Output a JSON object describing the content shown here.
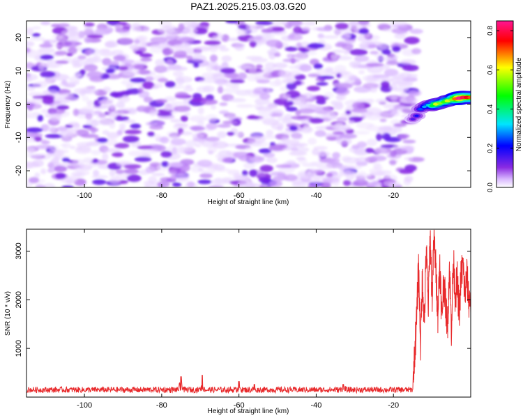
{
  "title": "PAZ1.2025.215.03.03.G20",
  "chart_data": [
    {
      "type": "heatmap",
      "xlabel": "Height of straight line (km)",
      "ylabel": "Frequency (Hz)",
      "xlim": [
        -115,
        0
      ],
      "ylim": [
        -25,
        25
      ],
      "x_ticks": [
        -100,
        -80,
        -60,
        -40,
        -20
      ],
      "y_ticks": [
        -20,
        -10,
        0,
        10,
        20
      ],
      "x_tick_labels": [
        "-100",
        "-80",
        "-60",
        "-40",
        "-20"
      ],
      "y_tick_labels": [
        "-20",
        "-10",
        "0",
        "10",
        "20"
      ],
      "colorbar": {
        "label": "Normalized spectral amplitude",
        "range": [
          0.0,
          0.85
        ],
        "ticks": [
          0.0,
          0.2,
          0.4,
          0.6,
          0.8
        ],
        "tick_labels": [
          "0.0",
          "0.2",
          "0.4",
          "0.6",
          "0.8"
        ],
        "colors": [
          "#ffffff",
          "#d9b8ff",
          "#8a2be2",
          "#0000ff",
          "#00e5ff",
          "#00ff00",
          "#ffff00",
          "#ff0000",
          "#ff1493"
        ]
      },
      "noise_region": {
        "x_range": [
          -115,
          -15
        ],
        "y_range": [
          -25,
          25
        ],
        "amplitude_range": [
          0.02,
          0.12
        ]
      },
      "signal_ridge": {
        "x": [
          -15,
          -14,
          -13,
          -12,
          -11,
          -10,
          -9,
          -8,
          -7,
          -6,
          -5,
          -4,
          -3,
          -2,
          -1,
          0
        ],
        "y": [
          -4.5,
          -3.5,
          -1.5,
          -0.8,
          -0.3,
          -0.5,
          0.0,
          0.3,
          0.6,
          1.0,
          1.3,
          1.6,
          1.8,
          2.0,
          2.0,
          2.0
        ],
        "amplitude": [
          0.15,
          0.2,
          0.25,
          0.3,
          0.35,
          0.45,
          0.6,
          0.55,
          0.5,
          0.6,
          0.55,
          0.7,
          0.85,
          0.8,
          0.75,
          0.7
        ]
      }
    },
    {
      "type": "line",
      "xlabel": "Height of straight line (km)",
      "ylabel": "SNR (10 * v/v)",
      "xlim": [
        -115,
        0
      ],
      "ylim": [
        0,
        3450
      ],
      "x_ticks": [
        -100,
        -80,
        -60,
        -40,
        -20
      ],
      "y_ticks": [
        1000,
        2000,
        3000
      ],
      "x_tick_labels": [
        "-100",
        "-80",
        "-60",
        "-40",
        "-20"
      ],
      "y_tick_labels": [
        "1000",
        "2000",
        "3000"
      ],
      "color": "#e8292b",
      "baseline": {
        "x_range": [
          -115,
          -15
        ],
        "mean": 150,
        "amplitude": 60
      },
      "spikes": [
        {
          "x": -75,
          "y": 420
        },
        {
          "x": -69.5,
          "y": 450
        },
        {
          "x": -60,
          "y": 320
        },
        {
          "x": -56,
          "y": 260
        },
        {
          "x": -33,
          "y": 260
        }
      ],
      "x": [
        -15,
        -14.5,
        -14,
        -13.5,
        -13,
        -12.5,
        -12,
        -11.5,
        -11,
        -10.5,
        -10,
        -9.5,
        -9,
        -8.5,
        -8,
        -7.5,
        -7,
        -6.5,
        -6,
        -5.5,
        -5,
        -4.5,
        -4,
        -3.5,
        -3,
        -2.5,
        -2,
        -1.5,
        -1,
        -0.5,
        0
      ],
      "y": [
        250,
        900,
        1600,
        2700,
        1100,
        2500,
        1500,
        3100,
        1800,
        3400,
        2000,
        3300,
        2600,
        1700,
        2800,
        1600,
        2400,
        1900,
        1500,
        2700,
        1400,
        2800,
        2100,
        2400,
        1700,
        2500,
        2700,
        2100,
        2500,
        2000,
        2000
      ]
    }
  ]
}
